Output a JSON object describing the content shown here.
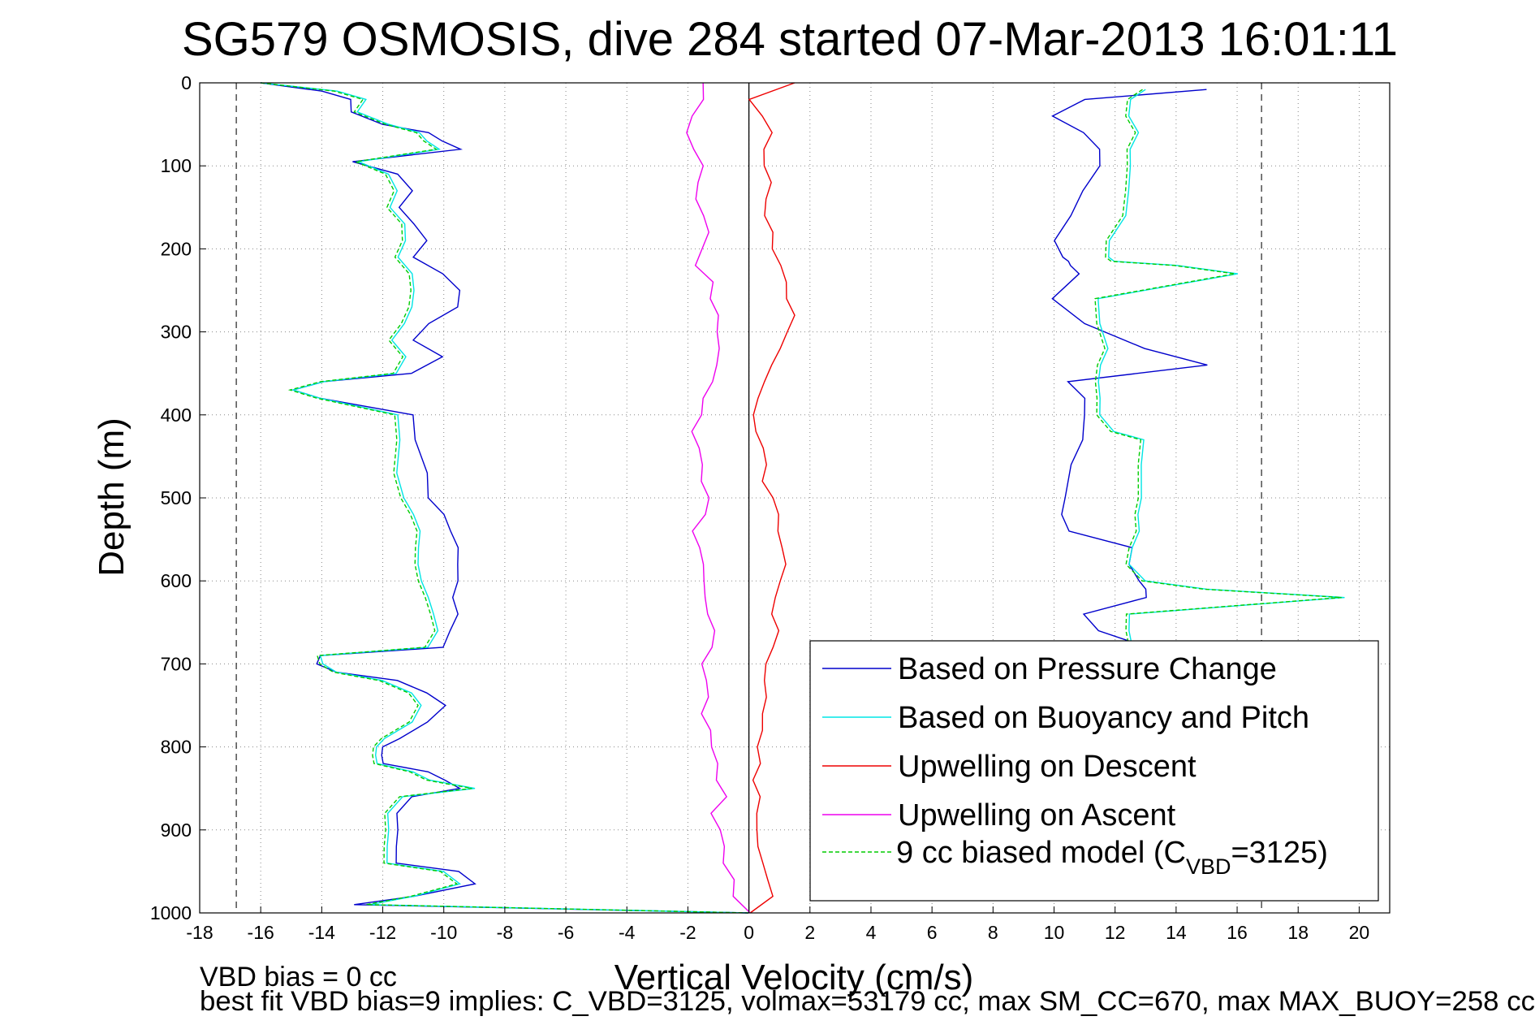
{
  "chart_data": {
    "type": "line",
    "title": "SG579 OSMOSIS, dive 284 started 07-Mar-2013 16:01:11",
    "xlabel": "Vertical Velocity (cm/s)",
    "ylabel": "Depth (m)",
    "xlim": [
      -18,
      21
    ],
    "ylim": [
      1000,
      0
    ],
    "y_axis_inverted": true,
    "grid": true,
    "legend_position": "bottom-right",
    "xticks": [
      "-18",
      "-16",
      "-14",
      "-12",
      "-10",
      "-8",
      "-6",
      "-4",
      "-2",
      "0",
      "2",
      "4",
      "6",
      "8",
      "10",
      "12",
      "14",
      "16",
      "18",
      "20"
    ],
    "yticks": [
      "0",
      "100",
      "200",
      "300",
      "400",
      "500",
      "600",
      "700",
      "800",
      "900",
      "1000"
    ],
    "reference_lines": {
      "x_dashed": [
        -16.8,
        16.8
      ],
      "x_solid": [
        0
      ]
    },
    "series": [
      {
        "name": "Based on Pressure Change",
        "color": "#0000cc",
        "depth": [
          0,
          10,
          20,
          35,
          50,
          60,
          70,
          80,
          95,
          110,
          130,
          150,
          170,
          190,
          210,
          230,
          250,
          270,
          290,
          310,
          330,
          350,
          360,
          370,
          380,
          400,
          430,
          470,
          500,
          520,
          540,
          560,
          580,
          600,
          620,
          640,
          660,
          680,
          690,
          700,
          710,
          720,
          735,
          750,
          770,
          790,
          800,
          810,
          820,
          830,
          840,
          850,
          860,
          880,
          900,
          920,
          940,
          950,
          965,
          980,
          990,
          1000
        ],
        "descent": [
          -16,
          -14,
          -13,
          -13,
          -12,
          -10.5,
          -10,
          -9.5,
          -13,
          -11.5,
          -11,
          -11.5,
          -11,
          -10.5,
          -11,
          -10,
          -9.5,
          -9.5,
          -10.5,
          -11,
          -10,
          -11,
          -14,
          -15,
          -14,
          -11,
          -11,
          -10.5,
          -10.5,
          -10,
          -9.8,
          -9.5,
          -9.5,
          -9.6,
          -9.7,
          -9.5,
          -9.8,
          -10,
          -14,
          -14.2,
          -13.5,
          -11.5,
          -10.5,
          -10,
          -10.5,
          -11.5,
          -12,
          -12,
          -12,
          -10.5,
          -10,
          -9.5,
          -11,
          -11.5,
          -11.5,
          -11.5,
          -11.5,
          -9.5,
          -9,
          -11,
          -13,
          0
        ],
        "ascent": [
          15,
          11,
          10,
          11,
          11.5,
          11.5,
          11,
          10.5,
          10,
          10.3,
          10.5,
          10.5,
          10.8,
          10,
          11,
          13,
          15,
          10.5,
          11,
          11,
          11,
          11,
          10.5,
          10.3,
          10.3,
          10.5,
          12.5,
          12.5,
          12.8,
          13,
          13,
          11,
          11.5,
          13,
          16,
          11.5,
          11.8,
          12
        ],
        "ascent_depth": [
          8,
          20,
          40,
          60,
          80,
          100,
          130,
          160,
          190,
          210,
          215,
          220,
          230,
          260,
          290,
          320,
          340,
          360,
          380,
          400,
          420,
          430,
          460,
          500,
          520,
          540,
          560,
          580,
          600,
          610,
          620,
          640,
          660,
          680,
          690,
          700,
          720,
          740
        ]
      },
      {
        "name": "Based on Buoyancy and Pitch",
        "color": "#00e5e5",
        "descent": [
          -16,
          -13.5,
          -12.5,
          -12.8,
          -11.8,
          -10.8,
          -10.5,
          -10.2,
          -12.8,
          -11.8,
          -11.5,
          -11.8,
          -11.3,
          -11.2,
          -11.5,
          -11,
          -11,
          -11,
          -11.3,
          -11.7,
          -11.2,
          -11.5,
          -14,
          -15,
          -14,
          -11.5,
          -11.5,
          -11.5,
          -11.3,
          -11,
          -10.8,
          -10.8,
          -10.8,
          -10.8,
          -10.5,
          -10.3,
          -10.2,
          -10.5,
          -14,
          -14,
          -13.5,
          -12,
          -11,
          -10.8,
          -11,
          -12,
          -12.2,
          -12.2,
          -12.2,
          -11,
          -10.5,
          -9,
          -11.3,
          -11.8,
          -11.8,
          -11.8,
          -11.8,
          -10,
          -9.5,
          -11,
          -12.5,
          0
        ],
        "ascent": [
          13,
          12.5,
          12.5,
          12.8,
          12.5,
          12.5,
          12.5,
          12.3,
          11.8,
          11.8,
          12,
          14,
          16,
          11.5,
          11.5,
          11.8,
          11.5,
          11.5,
          11.5,
          11.5,
          12,
          13,
          12.8,
          12.8,
          12.8,
          12.8,
          12.5,
          12.5,
          13,
          15,
          19.5,
          12.5,
          12.5,
          12.5,
          12.3,
          12.3,
          12.5,
          12.5
        ]
      },
      {
        "name": "Upwelling on Descent",
        "color": "#ee0000",
        "depth": [
          0,
          20,
          40,
          60,
          80,
          100,
          120,
          140,
          160,
          180,
          200,
          220,
          240,
          260,
          280,
          300,
          320,
          340,
          360,
          380,
          400,
          420,
          440,
          460,
          480,
          500,
          520,
          540,
          560,
          580,
          600,
          620,
          640,
          660,
          680,
          700,
          720,
          740,
          760,
          780,
          800,
          820,
          840,
          860,
          880,
          900,
          920,
          940,
          960,
          980,
          1000
        ],
        "values": [
          1.5,
          0,
          0.5,
          0.8,
          0.5,
          0.5,
          0.8,
          0.5,
          0.5,
          0.8,
          0.8,
          1,
          1.2,
          1.3,
          1.5,
          1.3,
          1,
          0.8,
          0.5,
          0.3,
          0.2,
          0.3,
          0.4,
          0.5,
          0.5,
          0.8,
          0.9,
          1,
          1.1,
          1.2,
          1,
          0.9,
          0.8,
          0.9,
          0.8,
          0.6,
          0.5,
          0.6,
          0.5,
          0.4,
          0.3,
          0.4,
          0.2,
          0.3,
          0.3,
          0.2,
          0.3,
          0.5,
          0.6,
          0.8,
          0
        ]
      },
      {
        "name": "Upwelling on Ascent",
        "color": "#ee00ee",
        "values": [
          -1.5,
          -1.5,
          -1.8,
          -2,
          -1.8,
          -1.5,
          -1.6,
          -1.8,
          -1.5,
          -1.3,
          -1.5,
          -1.8,
          -1.2,
          -1.2,
          -1,
          -1,
          -1,
          -1,
          -1.2,
          -1.5,
          -1.5,
          -1.8,
          -1.7,
          -1.6,
          -1.5,
          -1.3,
          -1.5,
          -1.8,
          -1.6,
          -1.5,
          -1.5,
          -1.4,
          -1.3,
          -1.2,
          -1.2,
          -1.5,
          -1.4,
          -1.3,
          -1.5,
          -1.3,
          -1.2,
          -1,
          -1,
          -0.8,
          -1.2,
          -1,
          -0.8,
          -0.8,
          -0.5,
          -0.5,
          0
        ]
      },
      {
        "name": "9 cc biased model (C<sub>VBD</sub>=3125)",
        "name_text": "9 cc biased model (CVBD=3125)",
        "color": "#00cc00",
        "dashed": true,
        "descent": [
          -16,
          -13.6,
          -12.6,
          -12.9,
          -11.9,
          -10.9,
          -10.6,
          -10.3,
          -12.9,
          -11.9,
          -11.6,
          -11.9,
          -11.4,
          -11.3,
          -11.6,
          -11.1,
          -11.1,
          -11.1,
          -11.4,
          -11.8,
          -11.3,
          -11.6,
          -14.1,
          -15.1,
          -14.1,
          -11.6,
          -11.6,
          -11.6,
          -11.4,
          -11.1,
          -10.9,
          -10.9,
          -10.9,
          -10.9,
          -10.6,
          -10.4,
          -10.3,
          -10.6,
          -14.1,
          -14.1,
          -13.6,
          -12.1,
          -11.1,
          -10.9,
          -11.1,
          -12.1,
          -12.3,
          -12.3,
          -12.3,
          -11.1,
          -10.6,
          -9.1,
          -11.4,
          -11.9,
          -11.9,
          -11.9,
          -11.9,
          -10.1,
          -9.6,
          -11.1,
          -12.6,
          0
        ],
        "ascent": [
          12.9,
          12.4,
          12.4,
          12.7,
          12.4,
          12.4,
          12.4,
          12.2,
          11.7,
          11.7,
          11.9,
          13.9,
          15.9,
          11.4,
          11.4,
          11.7,
          11.4,
          11.4,
          11.4,
          11.4,
          11.9,
          12.9,
          12.7,
          12.7,
          12.7,
          12.7,
          12.4,
          12.4,
          12.9,
          14.9,
          19.4,
          12.4,
          12.4,
          12.4,
          12.2,
          12.2,
          12.4,
          12.4
        ]
      }
    ],
    "legend": [
      "Based on Pressure Change",
      "Based on Buoyancy and Pitch",
      "Upwelling on Descent",
      "Upwelling on Ascent",
      "9 cc biased model (C",
      "VBD",
      "=3125)"
    ],
    "footnotes": [
      "VBD bias = 0 cc",
      "best fit VBD bias=9 implies: C_VBD=3125, volmax=53179 cc, max SM_CC=670, max MAX_BUOY=258 cc"
    ]
  }
}
